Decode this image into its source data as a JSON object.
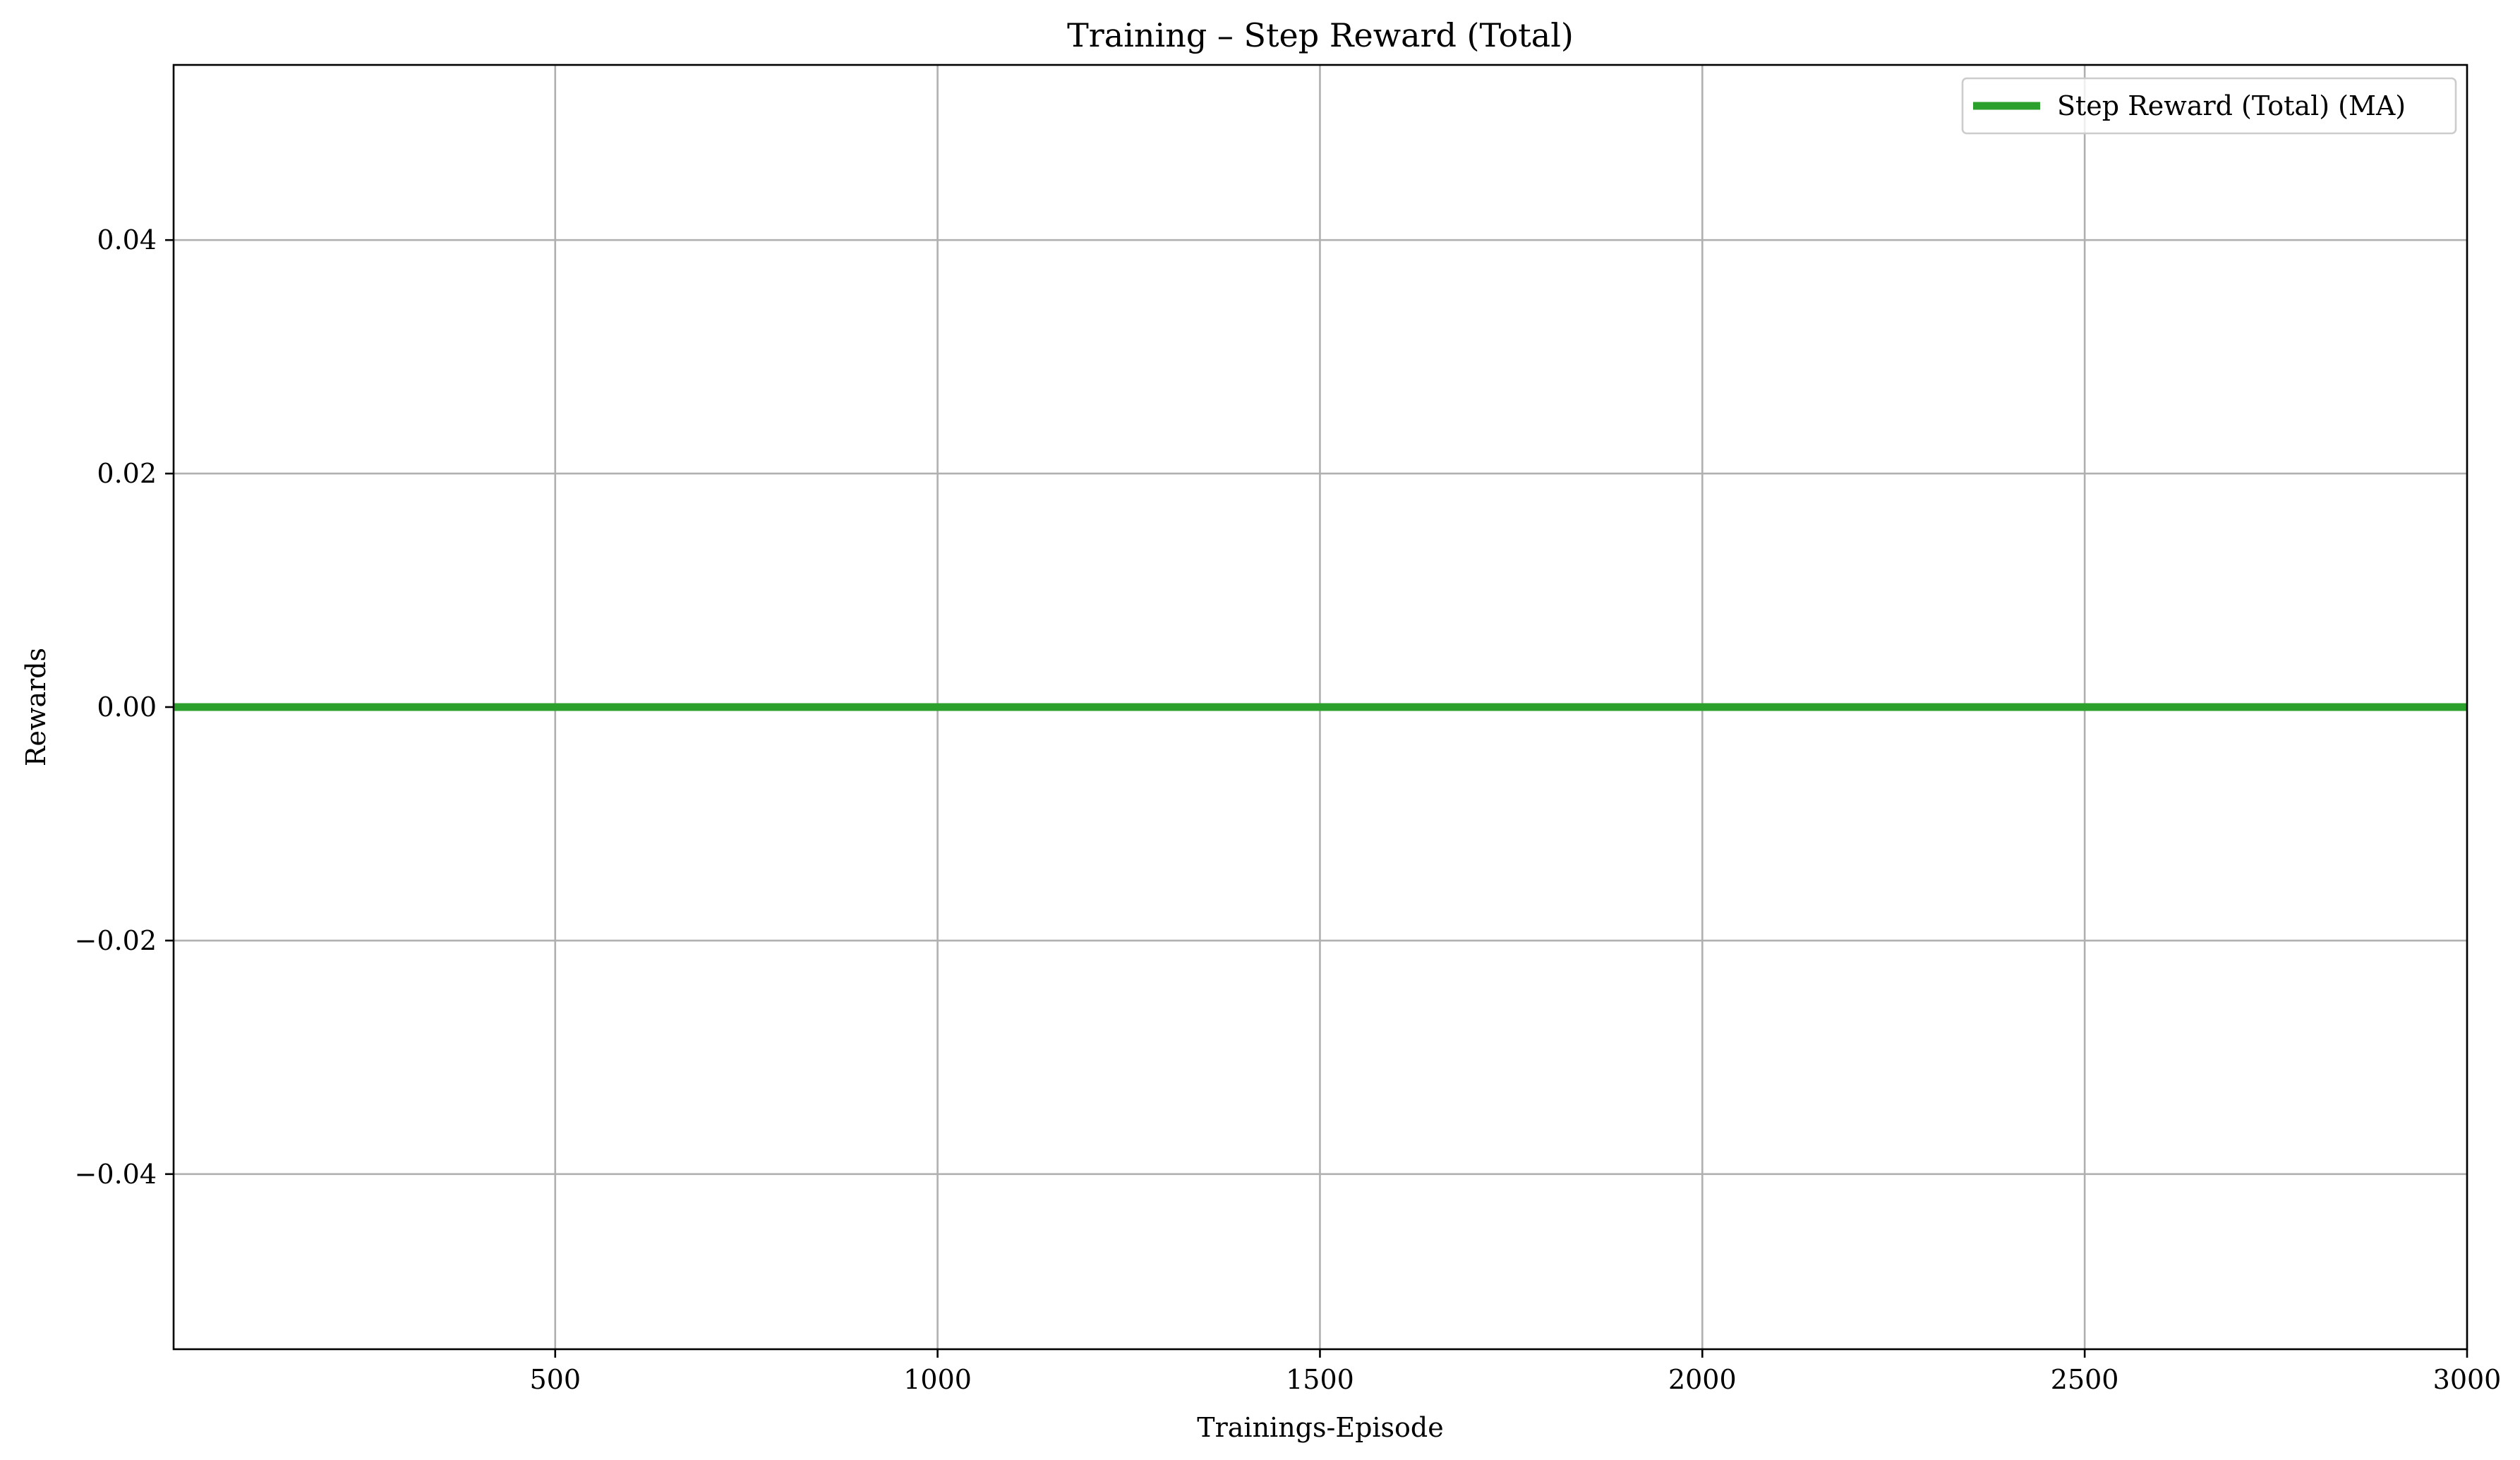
{
  "chart_data": {
    "type": "line",
    "title": "Training – Step Reward (Total)",
    "xlabel": "Trainings-Episode",
    "ylabel": "Rewards",
    "xlim": [
      1,
      3000
    ],
    "ylim": [
      -0.055,
      0.055
    ],
    "xticks": [
      500,
      1000,
      1500,
      2000,
      2500,
      3000
    ],
    "xtick_labels": [
      "500",
      "1000",
      "1500",
      "2000",
      "2500",
      "3000"
    ],
    "yticks": [
      0.04,
      0.02,
      0.0,
      -0.02,
      -0.04
    ],
    "ytick_labels": [
      "0.04",
      "0.02",
      "0.00",
      "−0.02",
      "−0.04"
    ],
    "grid": true,
    "legend_position": "top-right",
    "series": [
      {
        "name": "Step Reward (Total) (MA)",
        "color": "#2ca02c",
        "x": [
          1,
          3000
        ],
        "y": [
          0.0,
          0.0
        ]
      }
    ]
  }
}
